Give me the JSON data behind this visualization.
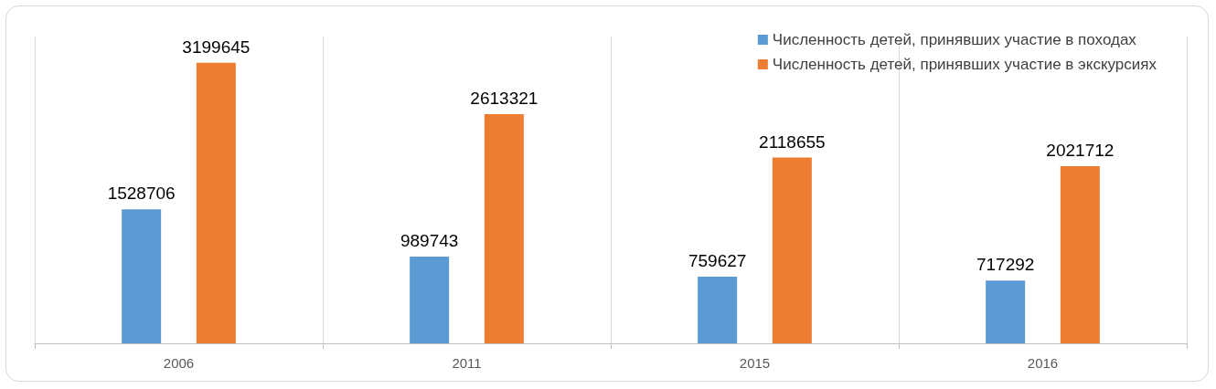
{
  "chart_data": {
    "type": "bar",
    "categories": [
      "2006",
      "2011",
      "2015",
      "2016"
    ],
    "series": [
      {
        "name": "Численность детей, принявших участие в походах",
        "color": "#5b9bd5",
        "values": [
          1528706,
          989743,
          759627,
          717292
        ]
      },
      {
        "name": "Численность детей, принявших участие в экскурсиях",
        "color": "#ed7d31",
        "values": [
          3199645,
          2613321,
          2118655,
          2021712
        ]
      }
    ],
    "data_labels": true,
    "grid": "x",
    "legend": "top right"
  }
}
